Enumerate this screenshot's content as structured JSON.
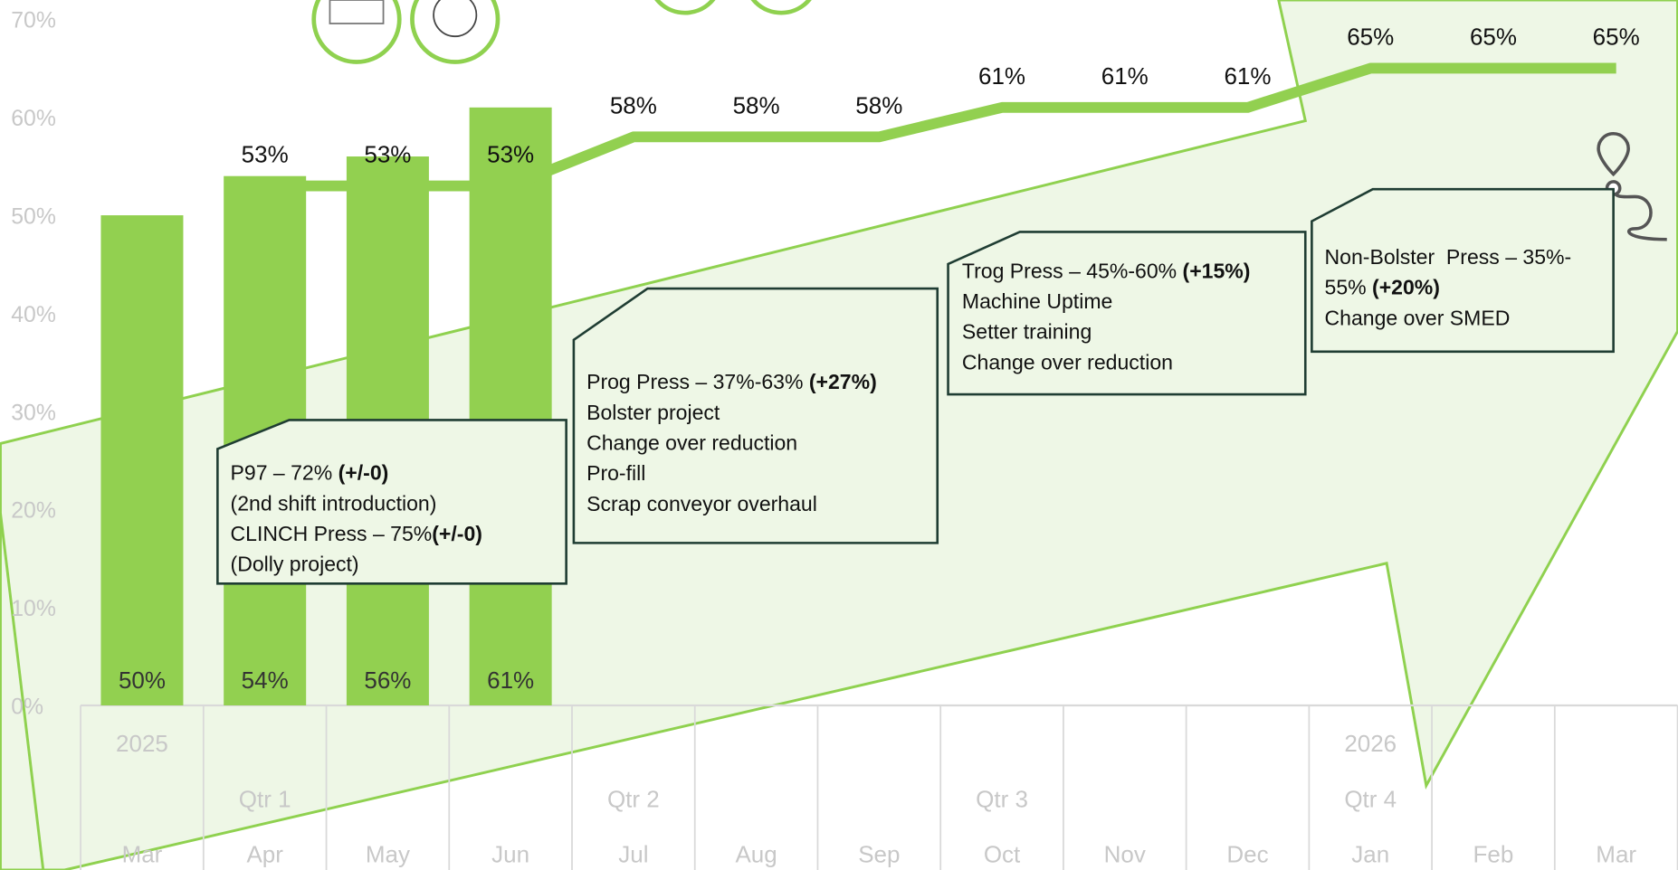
{
  "chart_data": {
    "type": "combo",
    "categories": [
      "Mar",
      "Apr",
      "May",
      "Jun",
      "Jul",
      "Aug",
      "Sep",
      "Oct",
      "Nov",
      "Dec",
      "Jan",
      "Feb",
      "Mar"
    ],
    "quarters": [
      null,
      "Qtr 1",
      null,
      null,
      "Qtr 2",
      null,
      null,
      "Qtr 3",
      null,
      null,
      "Qtr 4",
      null,
      null
    ],
    "years": [
      "2025",
      null,
      null,
      null,
      null,
      null,
      null,
      null,
      null,
      null,
      "2026",
      null,
      null
    ],
    "ylim": [
      0,
      70
    ],
    "yticks": [
      {
        "value": 0,
        "label": "0%"
      },
      {
        "value": 10,
        "label": "10%"
      },
      {
        "value": 20,
        "label": "20%"
      },
      {
        "value": 30,
        "label": "30%"
      },
      {
        "value": 40,
        "label": "40%"
      },
      {
        "value": 50,
        "label": "50%"
      },
      {
        "value": 60,
        "label": "60%"
      },
      {
        "value": 70,
        "label": "70%"
      }
    ],
    "series": [
      {
        "type": "bar",
        "color": "#92d050",
        "values": [
          50,
          54,
          56,
          61,
          null,
          null,
          null,
          null,
          null,
          null,
          null,
          null,
          null
        ],
        "value_labels": [
          "50%",
          "54%",
          "56%",
          "61%",
          null,
          null,
          null,
          null,
          null,
          null,
          null,
          null,
          null
        ]
      },
      {
        "type": "line",
        "color": "#92d050",
        "values": [
          null,
          53,
          53,
          53,
          58,
          58,
          58,
          61,
          61,
          61,
          65,
          65,
          65
        ],
        "value_labels": [
          null,
          "53%",
          "53%",
          "53%",
          "58%",
          "58%",
          "58%",
          "61%",
          "61%",
          "61%",
          "65%",
          "65%",
          "65%"
        ]
      }
    ],
    "annotations": [
      {
        "lines": [
          [
            {
              "text": "P97 – 72% "
            },
            {
              "text": "(+/-0)",
              "bold": true
            }
          ],
          [
            {
              "text": "(2nd shift introduction)"
            }
          ],
          [
            {
              "text": "CLINCH Press – 75%"
            },
            {
              "text": "(+/-0)",
              "bold": true
            }
          ],
          [
            {
              "text": "(Dolly project)"
            }
          ]
        ]
      },
      {
        "lines": [
          [
            {
              "text": "Prog Press – 37%-63% "
            },
            {
              "text": "(+27%)",
              "bold": true
            }
          ],
          [
            {
              "text": "Bolster project"
            }
          ],
          [
            {
              "text": "Change over reduction"
            }
          ],
          [
            {
              "text": "Pro-fill"
            }
          ],
          [
            {
              "text": "Scrap conveyor overhaul"
            }
          ]
        ]
      },
      {
        "lines": [
          [
            {
              "text": "Trog Press – 45%-60% "
            },
            {
              "text": "(+15%)",
              "bold": true
            }
          ],
          [
            {
              "text": "Machine Uptime"
            }
          ],
          [
            {
              "text": "Setter training"
            }
          ],
          [
            {
              "text": "Change over reduction"
            }
          ]
        ]
      },
      {
        "lines": [
          [
            {
              "text": "Non-Bolster  Press – 35%-"
            }
          ],
          [
            {
              "text": "55% "
            },
            {
              "text": "(+20%)",
              "bold": true
            }
          ],
          [
            {
              "text": "Change over SMED"
            }
          ]
        ]
      }
    ]
  }
}
